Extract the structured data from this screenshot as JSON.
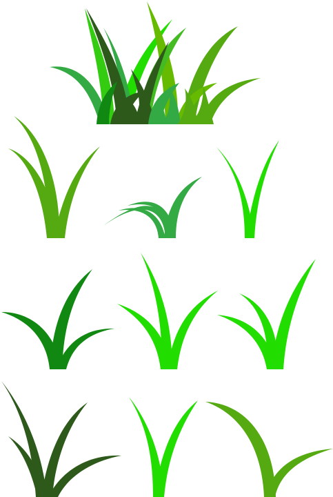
{
  "palette": {
    "background": "#ffffff",
    "bright_green": "#22dd00",
    "lime_green": "#33cc11",
    "mid_green": "#55aa11",
    "fresh_green": "#44bb22",
    "forest_green": "#118811",
    "emerald_green": "#33aa44",
    "olive_green": "#559911",
    "dark_green": "#2d5a1b",
    "yellow_green": "#66bb00"
  },
  "icons": [
    "grass-bunch-cluster",
    "grass-tuft-three-blade",
    "grass-tuft-curled",
    "grass-tuft-two-blade",
    "grass-tuft-dark-green",
    "grass-tuft-bright-tall",
    "grass-tuft-bright-wide",
    "grass-tuft-dark-olive",
    "grass-tuft-slim",
    "grass-tuft-arched"
  ]
}
